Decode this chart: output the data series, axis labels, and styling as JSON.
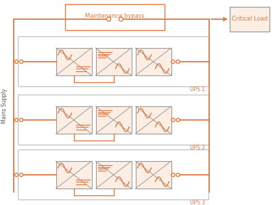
{
  "bg_color": "#ffffff",
  "orange": "#E07840",
  "box_fill": "#FDEEE4",
  "unit_fill": "#FDEEE4",
  "unit_border": "#999999",
  "mains_label": "Mains Supply",
  "bypass_label": "Maintenance bypass",
  "critical_label": "Critical Load",
  "ups_labels": [
    "UPS 1",
    "UPS 2",
    "UPS 3"
  ],
  "figsize": [
    4.01,
    2.99
  ],
  "dpi": 100
}
